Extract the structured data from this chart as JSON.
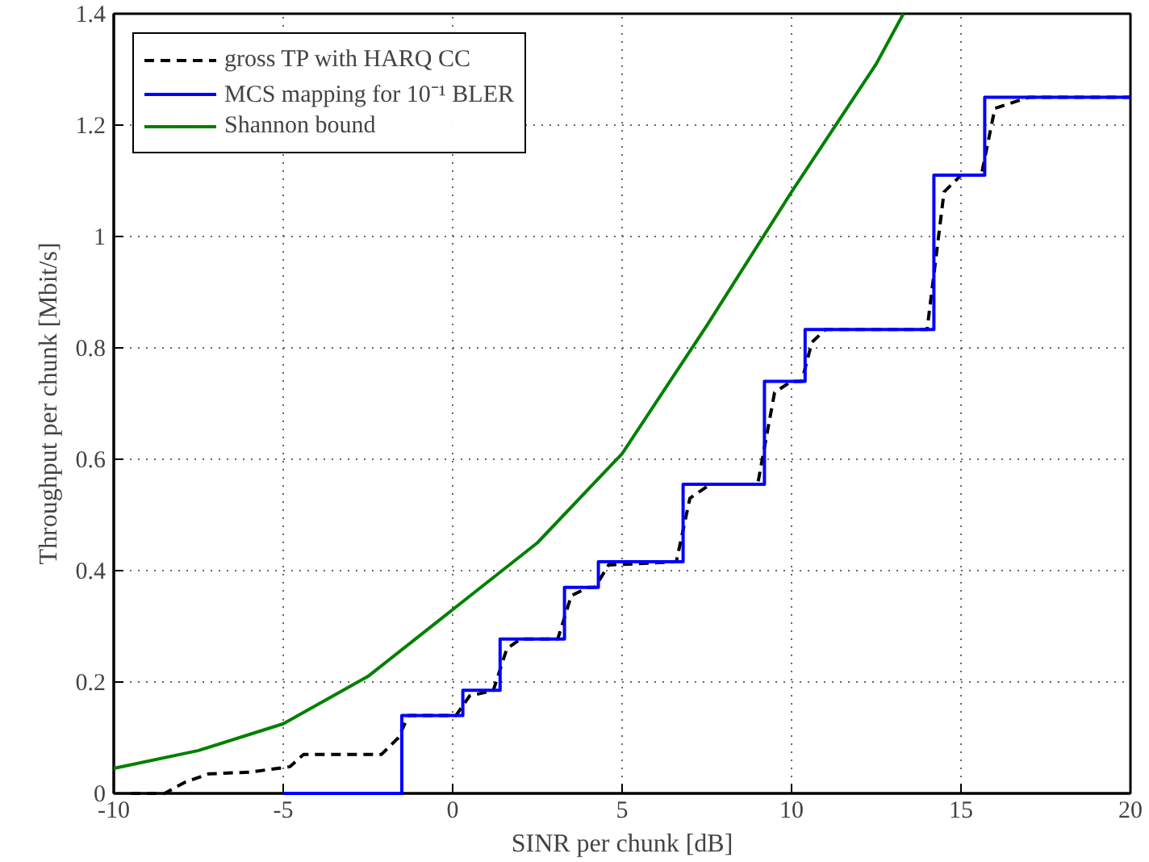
{
  "chart_data": {
    "type": "line",
    "xlabel": "SINR per chunk [dB]",
    "ylabel": "Throughput per chunk [Mbit/s]",
    "xlim": [
      -10,
      20
    ],
    "ylim": [
      0,
      1.4
    ],
    "xticks": [
      -10,
      -5,
      0,
      5,
      10,
      15,
      20
    ],
    "yticks": [
      0,
      0.2,
      0.4,
      0.6,
      0.8,
      1,
      1.2,
      1.4
    ],
    "grid": true,
    "legend": "top left",
    "marker": "none",
    "series": [
      {
        "name": "gross TP with HARQ CC",
        "color": "#000000",
        "line_style": "dashed",
        "x": [
          -9.5,
          -8.5,
          -7.9,
          -7.2,
          -6,
          -4.8,
          -4.4,
          -2.1,
          -1.6,
          -1.3,
          0.1,
          0.5,
          1.2,
          1.6,
          2,
          3.1,
          3.5,
          4,
          4.2,
          4.6,
          6.6,
          7,
          7.6,
          9,
          9.5,
          10,
          10.3,
          10.6,
          11,
          14,
          14.5,
          15,
          15.6,
          16,
          17,
          20
        ],
        "values": [
          0,
          0,
          0.02,
          0.035,
          0.038,
          0.048,
          0.07,
          0.07,
          0.1,
          0.14,
          0.14,
          0.175,
          0.185,
          0.26,
          0.277,
          0.277,
          0.355,
          0.37,
          0.37,
          0.41,
          0.416,
          0.53,
          0.555,
          0.555,
          0.72,
          0.74,
          0.74,
          0.81,
          0.833,
          0.833,
          1.08,
          1.11,
          1.11,
          1.23,
          1.25,
          1.25
        ]
      },
      {
        "name": "MCS mapping for 10⁻¹ BLER",
        "color": "#0000ff",
        "type": "step",
        "x": [
          -5,
          -1.5,
          0.3,
          1.4,
          3.3,
          4.3,
          6.8,
          9.2,
          10.4,
          14.2,
          15.7,
          20
        ],
        "values": [
          0,
          0.14,
          0.185,
          0.277,
          0.37,
          0.416,
          0.555,
          0.74,
          0.833,
          1.11,
          1.25,
          1.25
        ]
      },
      {
        "name": "Shannon bound",
        "color": "#008000",
        "line_style": "solid",
        "x": [
          -10,
          -7.5,
          -5,
          -2.5,
          0,
          2.5,
          5,
          7.5,
          10,
          12.5,
          13.3
        ],
        "values": [
          0.045,
          0.077,
          0.125,
          0.21,
          0.33,
          0.45,
          0.61,
          0.84,
          1.08,
          1.31,
          1.4
        ]
      }
    ]
  }
}
